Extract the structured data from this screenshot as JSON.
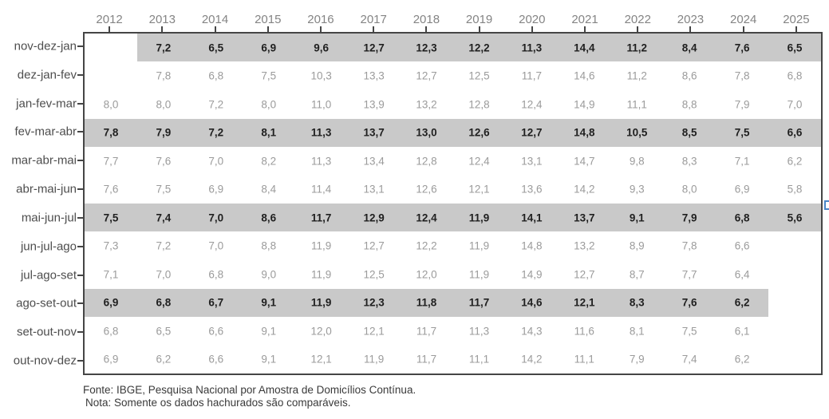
{
  "figure": {
    "footer": {
      "fonte": "Fonte: IBGE, Pesquisa Nacional por Amostra de Domicílios Contínua.",
      "nota": "Nota: Somente os dados hachurados são comparáveis."
    },
    "colors": {
      "highlight_band": "#c9c9c9",
      "plot_border": "#454545",
      "year_label": "#848484",
      "row_label": "#4d4d4d",
      "value_normal": "#9b9b9b",
      "value_highlighted": "#1f1f1f",
      "blue_marker": "#4a86c8"
    }
  },
  "chart_data": {
    "type": "table",
    "xlabel": "",
    "ylabel": "",
    "decimal_separator": ",",
    "legend": "highlighted (hachurado) rows = comparable data, shown bold on gray band",
    "columns": [
      "2012",
      "2013",
      "2014",
      "2015",
      "2016",
      "2017",
      "2018",
      "2019",
      "2020",
      "2021",
      "2022",
      "2023",
      "2024",
      "2025"
    ],
    "rows": [
      {
        "label": "nov-dez-jan",
        "highlighted": true,
        "values": [
          null,
          7.2,
          6.5,
          6.9,
          9.6,
          12.7,
          12.3,
          12.2,
          11.3,
          14.4,
          11.2,
          8.4,
          7.6,
          6.5
        ]
      },
      {
        "label": "dez-jan-fev",
        "highlighted": false,
        "values": [
          null,
          7.8,
          6.8,
          7.5,
          10.3,
          13.3,
          12.7,
          12.5,
          11.7,
          14.6,
          11.2,
          8.6,
          7.8,
          6.8
        ]
      },
      {
        "label": "jan-fev-mar",
        "highlighted": false,
        "values": [
          8.0,
          8.0,
          7.2,
          8.0,
          11.0,
          13.9,
          13.2,
          12.8,
          12.4,
          14.9,
          11.1,
          8.8,
          7.9,
          7.0
        ]
      },
      {
        "label": "fev-mar-abr",
        "highlighted": true,
        "values": [
          7.8,
          7.9,
          7.2,
          8.1,
          11.3,
          13.7,
          13.0,
          12.6,
          12.7,
          14.8,
          10.5,
          8.5,
          7.5,
          6.6
        ]
      },
      {
        "label": "mar-abr-mai",
        "highlighted": false,
        "values": [
          7.7,
          7.6,
          7.0,
          8.2,
          11.3,
          13.4,
          12.8,
          12.4,
          13.1,
          14.7,
          9.8,
          8.3,
          7.1,
          6.2
        ]
      },
      {
        "label": "abr-mai-jun",
        "highlighted": false,
        "values": [
          7.6,
          7.5,
          6.9,
          8.4,
          11.4,
          13.1,
          12.6,
          12.1,
          13.6,
          14.2,
          9.3,
          8.0,
          6.9,
          5.8
        ]
      },
      {
        "label": "mai-jun-jul",
        "highlighted": true,
        "values": [
          7.5,
          7.4,
          7.0,
          8.6,
          11.7,
          12.9,
          12.4,
          11.9,
          14.1,
          13.7,
          9.1,
          7.9,
          6.8,
          5.6
        ]
      },
      {
        "label": "jun-jul-ago",
        "highlighted": false,
        "values": [
          7.3,
          7.2,
          7.0,
          8.8,
          11.9,
          12.7,
          12.2,
          11.9,
          14.8,
          13.2,
          8.9,
          7.8,
          6.6,
          null
        ]
      },
      {
        "label": "jul-ago-set",
        "highlighted": false,
        "values": [
          7.1,
          7.0,
          6.8,
          9.0,
          11.9,
          12.5,
          12.0,
          11.9,
          14.9,
          12.7,
          8.7,
          7.7,
          6.4,
          null
        ]
      },
      {
        "label": "ago-set-out",
        "highlighted": true,
        "values": [
          6.9,
          6.8,
          6.7,
          9.1,
          11.9,
          12.3,
          11.8,
          11.7,
          14.6,
          12.1,
          8.3,
          7.6,
          6.2,
          null
        ]
      },
      {
        "label": "set-out-nov",
        "highlighted": false,
        "values": [
          6.8,
          6.5,
          6.6,
          9.1,
          12.0,
          12.1,
          11.7,
          11.3,
          14.3,
          11.6,
          8.1,
          7.5,
          6.1,
          null
        ]
      },
      {
        "label": "out-nov-dez",
        "highlighted": false,
        "values": [
          6.9,
          6.2,
          6.6,
          9.1,
          12.1,
          11.9,
          11.7,
          11.1,
          14.2,
          11.1,
          7.9,
          7.4,
          6.2,
          null
        ]
      }
    ],
    "notes": [
      "Fonte: IBGE, Pesquisa Nacional por Amostra de Domicílios Contínua.",
      "Nota: Somente os dados hachurados são comparáveis."
    ]
  }
}
